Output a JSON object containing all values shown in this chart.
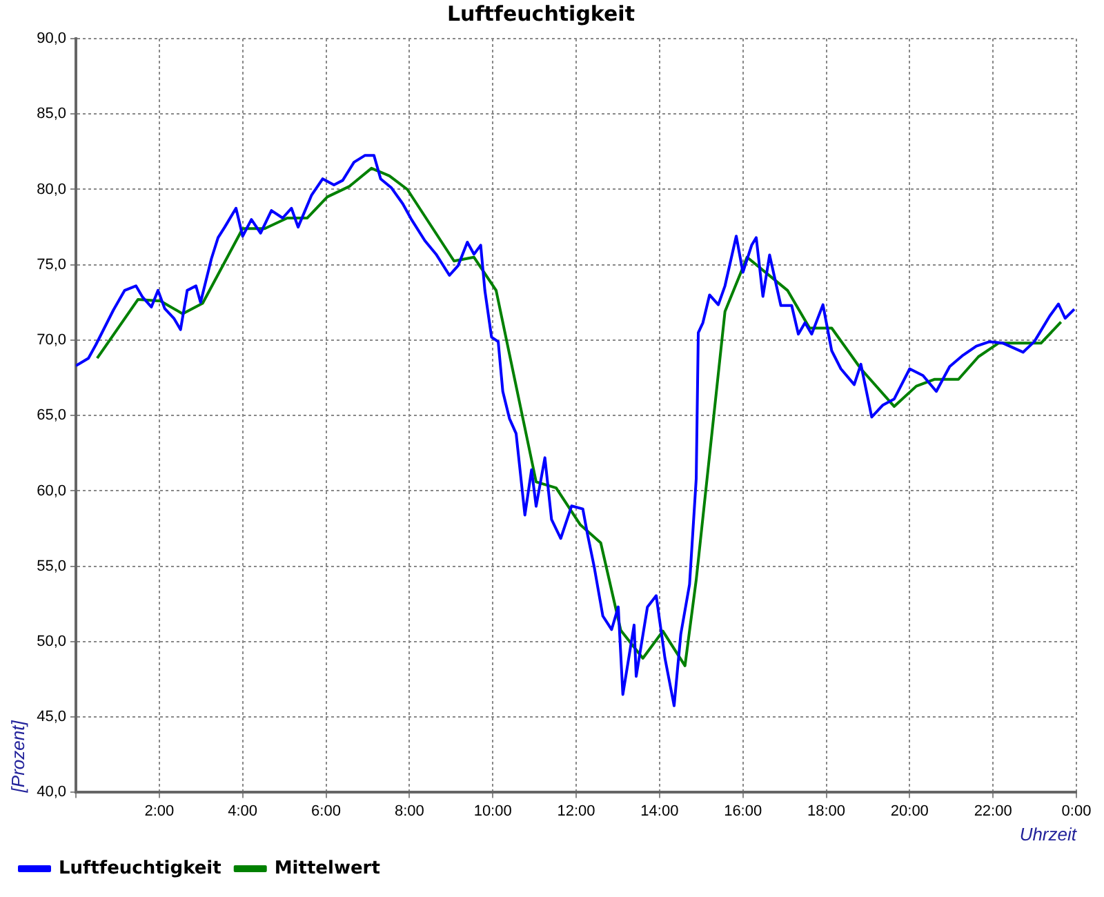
{
  "chart_data": {
    "type": "line",
    "title": "Luftfeuchtigkeit",
    "xlabel": "Uhrzeit",
    "ylabel": "[Prozent]",
    "xlim": [
      0,
      24
    ],
    "xticks": [
      {
        "value": 0,
        "label": null
      },
      {
        "value": 2,
        "label": "2:00"
      },
      {
        "value": 4,
        "label": "4:00"
      },
      {
        "value": 6,
        "label": "6:00"
      },
      {
        "value": 8,
        "label": "8:00"
      },
      {
        "value": 10,
        "label": "10:00"
      },
      {
        "value": 12,
        "label": "12:00"
      },
      {
        "value": 14,
        "label": "14:00"
      },
      {
        "value": 16,
        "label": "16:00"
      },
      {
        "value": 18,
        "label": "18:00"
      },
      {
        "value": 20,
        "label": "20:00"
      },
      {
        "value": 22,
        "label": "22:00"
      },
      {
        "value": 24,
        "label": "0:00"
      }
    ],
    "ylim": [
      40,
      90
    ],
    "yticks": [
      {
        "value": 40,
        "label": "40,0"
      },
      {
        "value": 45,
        "label": "45,0"
      },
      {
        "value": 50,
        "label": "50,0"
      },
      {
        "value": 55,
        "label": "55,0"
      },
      {
        "value": 60,
        "label": "60,0"
      },
      {
        "value": 65,
        "label": "65,0"
      },
      {
        "value": 70,
        "label": "70,0"
      },
      {
        "value": 75,
        "label": "75,0"
      },
      {
        "value": 80,
        "label": "80,0"
      },
      {
        "value": 85,
        "label": "85,0"
      },
      {
        "value": 90,
        "label": "90,0"
      }
    ],
    "grid": true,
    "legend": "bottom left",
    "marker": "none",
    "line_style": "solid",
    "series": [
      {
        "name": "Luftfeuchtigkeit",
        "color": "#0000ff",
        "x": [
          0,
          0.3,
          0.48,
          0.9,
          1.17,
          1.44,
          1.6,
          1.81,
          1.97,
          2.13,
          2.35,
          2.51,
          2.67,
          2.88,
          2.99,
          3.25,
          3.41,
          3.57,
          3.84,
          4.0,
          4.21,
          4.43,
          4.69,
          4.96,
          5.17,
          5.33,
          5.65,
          5.92,
          6.19,
          6.4,
          6.67,
          6.93,
          7.15,
          7.31,
          7.57,
          7.84,
          8.05,
          8.37,
          8.64,
          8.96,
          9.17,
          9.39,
          9.55,
          9.71,
          9.81,
          9.97,
          10.13,
          10.24,
          10.4,
          10.56,
          10.77,
          10.93,
          11.04,
          11.25,
          11.41,
          11.63,
          11.89,
          12.16,
          12.27,
          12.43,
          12.64,
          12.85,
          13.01,
          13.12,
          13.39,
          13.44,
          13.71,
          13.92,
          14.13,
          14.35,
          14.51,
          14.72,
          14.88,
          14.93,
          15.04,
          15.2,
          15.41,
          15.57,
          15.84,
          16.0,
          16.21,
          16.32,
          16.48,
          16.64,
          16.91,
          17.17,
          17.33,
          17.49,
          17.65,
          17.92,
          18.13,
          18.35,
          18.67,
          18.83,
          19.09,
          19.36,
          19.63,
          20.0,
          20.32,
          20.64,
          20.96,
          21.28,
          21.6,
          21.92,
          22.24,
          22.72,
          22.99,
          23.36,
          23.57,
          23.73,
          23.95
        ],
        "values": [
          68.3,
          68.8,
          69.7,
          72.0,
          73.3,
          73.6,
          72.85,
          72.2,
          73.3,
          72.1,
          71.45,
          70.7,
          73.3,
          73.6,
          72.5,
          75.4,
          76.8,
          77.5,
          78.75,
          76.9,
          78.0,
          77.1,
          78.6,
          78.1,
          78.75,
          77.5,
          79.6,
          80.7,
          80.3,
          80.6,
          81.8,
          82.25,
          82.25,
          80.7,
          80.1,
          79.05,
          78.0,
          76.6,
          75.7,
          74.3,
          74.95,
          76.5,
          75.7,
          76.3,
          73.3,
          70.2,
          69.9,
          66.6,
          64.8,
          63.8,
          58.4,
          61.4,
          58.98,
          62.2,
          58.1,
          56.85,
          59.0,
          58.8,
          57.15,
          55.0,
          51.7,
          50.8,
          52.3,
          46.5,
          51.1,
          47.7,
          52.3,
          53.05,
          48.9,
          45.75,
          50.5,
          53.8,
          60.8,
          70.5,
          71.15,
          73.0,
          72.35,
          73.6,
          76.9,
          74.5,
          76.3,
          76.8,
          72.9,
          75.65,
          72.3,
          72.3,
          70.4,
          71.15,
          70.4,
          72.35,
          69.3,
          68.1,
          67.05,
          68.4,
          64.9,
          65.7,
          66.1,
          68.1,
          67.65,
          66.6,
          68.25,
          69.0,
          69.6,
          69.9,
          69.8,
          69.2,
          69.9,
          71.6,
          72.4,
          71.45,
          72.05
        ]
      },
      {
        "name": "Mittelwert",
        "color": "#008000",
        "x": [
          0.51,
          1.49,
          2.03,
          2.56,
          3.04,
          4.0,
          4.53,
          5.07,
          5.55,
          6.03,
          6.56,
          7.09,
          7.52,
          7.95,
          9.07,
          9.55,
          10.08,
          11.04,
          11.52,
          12.1,
          12.59,
          13.07,
          13.6,
          14.08,
          14.61,
          14.88,
          15.57,
          16.1,
          17.07,
          17.6,
          18.13,
          18.83,
          19.63,
          20.16,
          20.59,
          21.17,
          21.65,
          22.13,
          23.15,
          23.63
        ],
        "values": [
          68.8,
          72.7,
          72.6,
          71.75,
          72.45,
          77.4,
          77.4,
          78.1,
          78.1,
          79.5,
          80.2,
          81.4,
          80.9,
          80.0,
          75.25,
          75.5,
          73.3,
          60.6,
          60.2,
          57.75,
          56.55,
          50.75,
          48.9,
          50.7,
          48.4,
          54.1,
          71.9,
          75.5,
          73.3,
          70.8,
          70.8,
          68.1,
          65.6,
          66.95,
          67.4,
          67.4,
          68.9,
          69.8,
          69.8,
          71.2
        ]
      }
    ]
  }
}
